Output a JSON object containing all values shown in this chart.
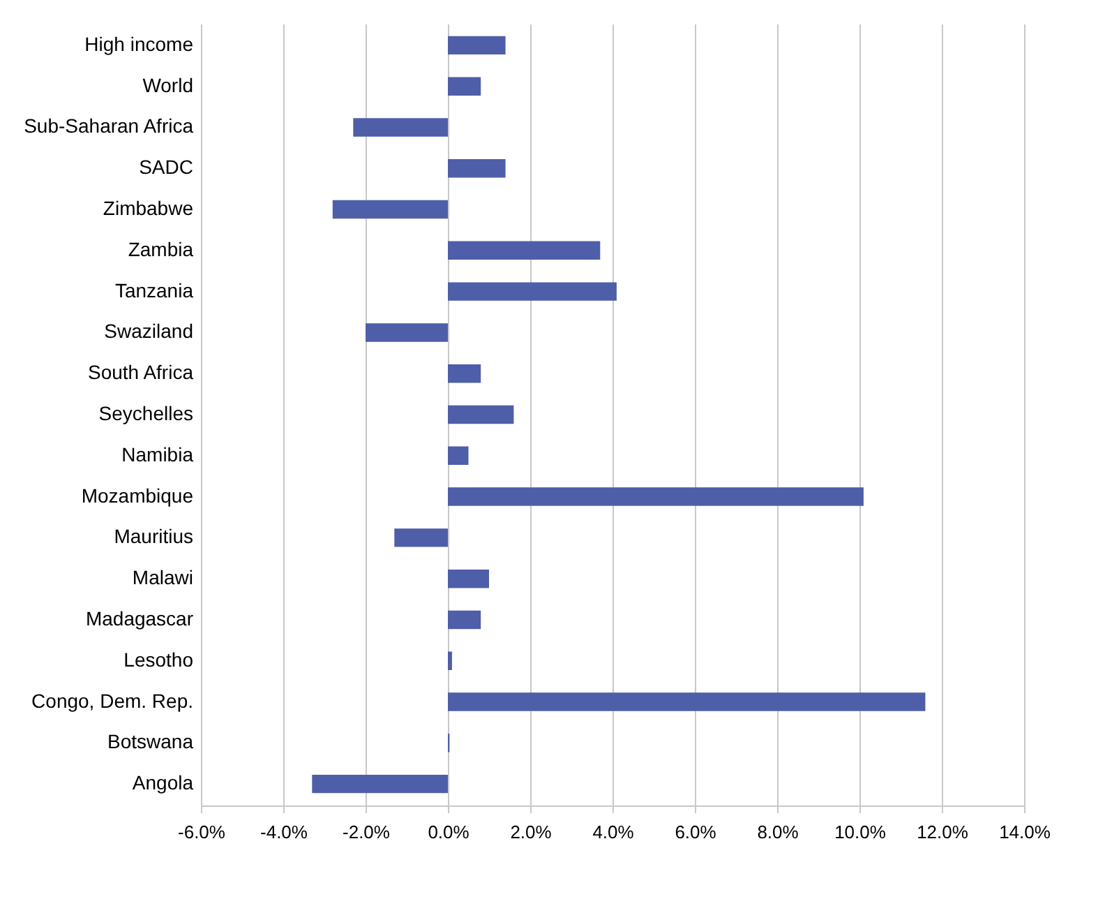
{
  "chart_data": {
    "type": "bar",
    "orientation": "horizontal",
    "categories": [
      "High income",
      "World",
      "Sub-Saharan Africa",
      "SADC",
      "Zimbabwe",
      "Zambia",
      "Tanzania",
      "Swaziland",
      "South Africa",
      "Seychelles",
      "Namibia",
      "Mozambique",
      "Mauritius",
      "Malawi",
      "Madagascar",
      "Lesotho",
      "Congo, Dem. Rep.",
      "Botswana",
      "Angola"
    ],
    "values": [
      1.4,
      0.8,
      -2.3,
      1.4,
      -2.8,
      3.7,
      4.1,
      -2.0,
      0.8,
      1.6,
      0.5,
      10.1,
      -1.3,
      1.0,
      0.8,
      0.1,
      11.6,
      0.04,
      -3.3
    ],
    "color": "#4f5ea8",
    "xlim": [
      -6,
      14
    ],
    "xticks": [
      {
        "value": -6,
        "label": "-6.0%"
      },
      {
        "value": -4,
        "label": "-4.0%"
      },
      {
        "value": -2,
        "label": "-2.0%"
      },
      {
        "value": 0,
        "label": "0.0%"
      },
      {
        "value": 2,
        "label": "2.0%"
      },
      {
        "value": 4,
        "label": "4.0%"
      },
      {
        "value": 6,
        "label": "6.0%"
      },
      {
        "value": 8,
        "label": "8.0%"
      },
      {
        "value": 10,
        "label": "10.0%"
      },
      {
        "value": 12,
        "label": "12.0%"
      },
      {
        "value": 14,
        "label": "14.0%"
      }
    ],
    "grid": "x"
  }
}
